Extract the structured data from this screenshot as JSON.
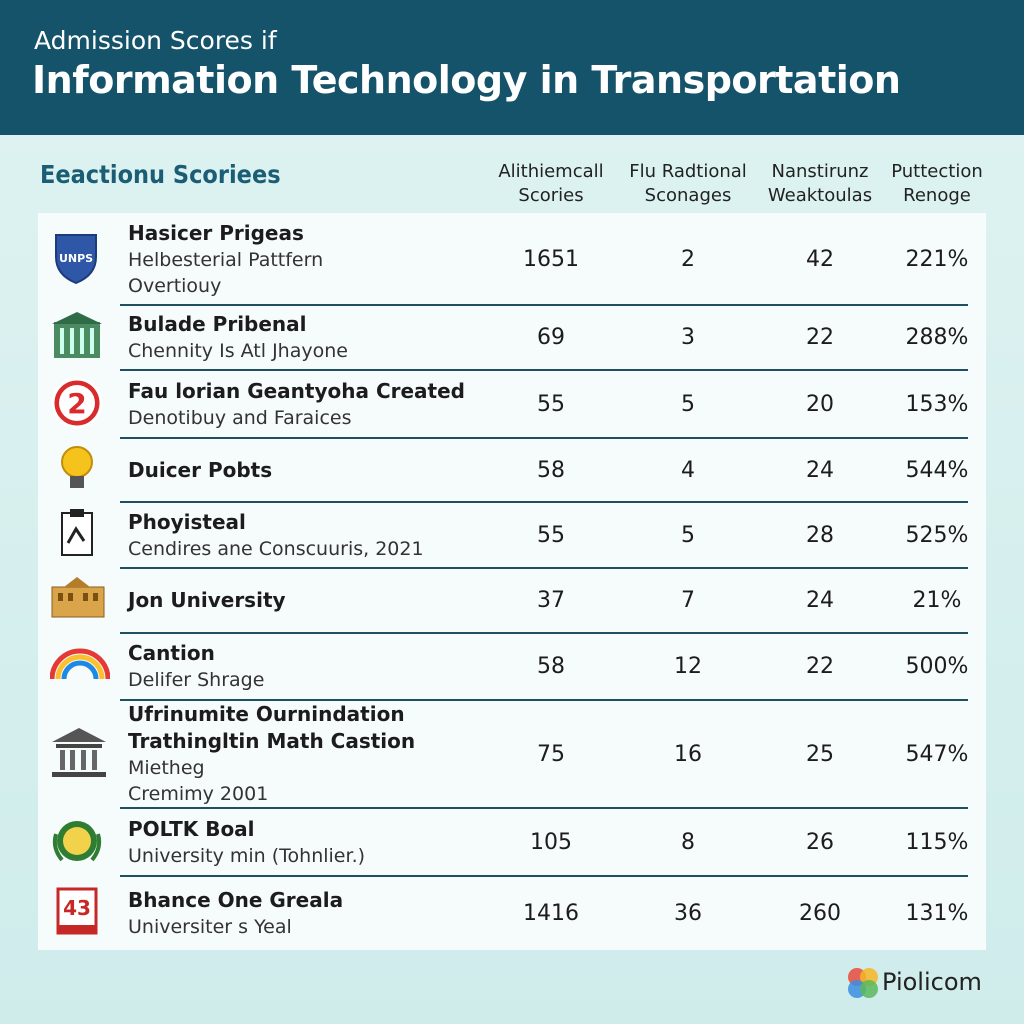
{
  "header": {
    "subtitle": "Admission Scores if",
    "title": "Information Technology in Transportation"
  },
  "table": {
    "section_title": "Eeactionu Scoriees",
    "columns": [
      [
        "Alithiemcall",
        "Scories"
      ],
      [
        "Flu Radtional",
        "Sconages"
      ],
      [
        "Nanstirunz",
        "Weaktoulas"
      ],
      [
        "Puttection",
        "Renoge"
      ]
    ],
    "rows": [
      {
        "icon_label": "UNPS",
        "title_lines": [
          "Hasicer Prigeas"
        ],
        "details": [
          "Helbesterial Pattfern",
          "Overtiouy"
        ],
        "values": [
          "1651",
          "2",
          "42",
          "221%"
        ]
      },
      {
        "title_lines": [
          "Bulade Pribenal"
        ],
        "details": [
          "Chennity Is Atl Jhayone"
        ],
        "values": [
          "69",
          "3",
          "22",
          "288%"
        ]
      },
      {
        "icon_label": "2",
        "title_lines": [
          "Fau lorian Geantyoha Created"
        ],
        "details": [
          "Denotibuy and Faraices"
        ],
        "values": [
          "55",
          "5",
          "20",
          "153%"
        ]
      },
      {
        "title_lines": [
          "Duicer Pobts"
        ],
        "details": [],
        "values": [
          "58",
          "4",
          "24",
          "544%"
        ]
      },
      {
        "title_lines": [
          "Phoyisteal"
        ],
        "details": [
          "Cendires ane Conscuuris, 2021"
        ],
        "values": [
          "55",
          "5",
          "28",
          "525%"
        ]
      },
      {
        "title_lines": [
          "Jon University"
        ],
        "details": [],
        "values": [
          "37",
          "7",
          "24",
          "21%"
        ]
      },
      {
        "title_lines": [
          "Cantion"
        ],
        "details": [
          "Delifer Shrage"
        ],
        "values": [
          "58",
          "12",
          "22",
          "500%"
        ]
      },
      {
        "title_lines": [
          "Ufrinumite Ournindation",
          "Trathingltin Math Castion"
        ],
        "details": [
          "Mietheg",
          "Cremimy 2001"
        ],
        "values": [
          "75",
          "16",
          "25",
          "547%"
        ]
      },
      {
        "title_lines": [
          "POLTK Boal"
        ],
        "details": [
          "University min (Tohnlier.)"
        ],
        "values": [
          "105",
          "8",
          "26",
          "115%"
        ]
      },
      {
        "icon_label": "43",
        "title_lines": [
          "Bhance One Greala"
        ],
        "details": [
          "Universiter s Yeal"
        ],
        "values": [
          "1416",
          "36",
          "260",
          "131%"
        ]
      }
    ]
  },
  "footer": {
    "brand": "Piolicom"
  }
}
